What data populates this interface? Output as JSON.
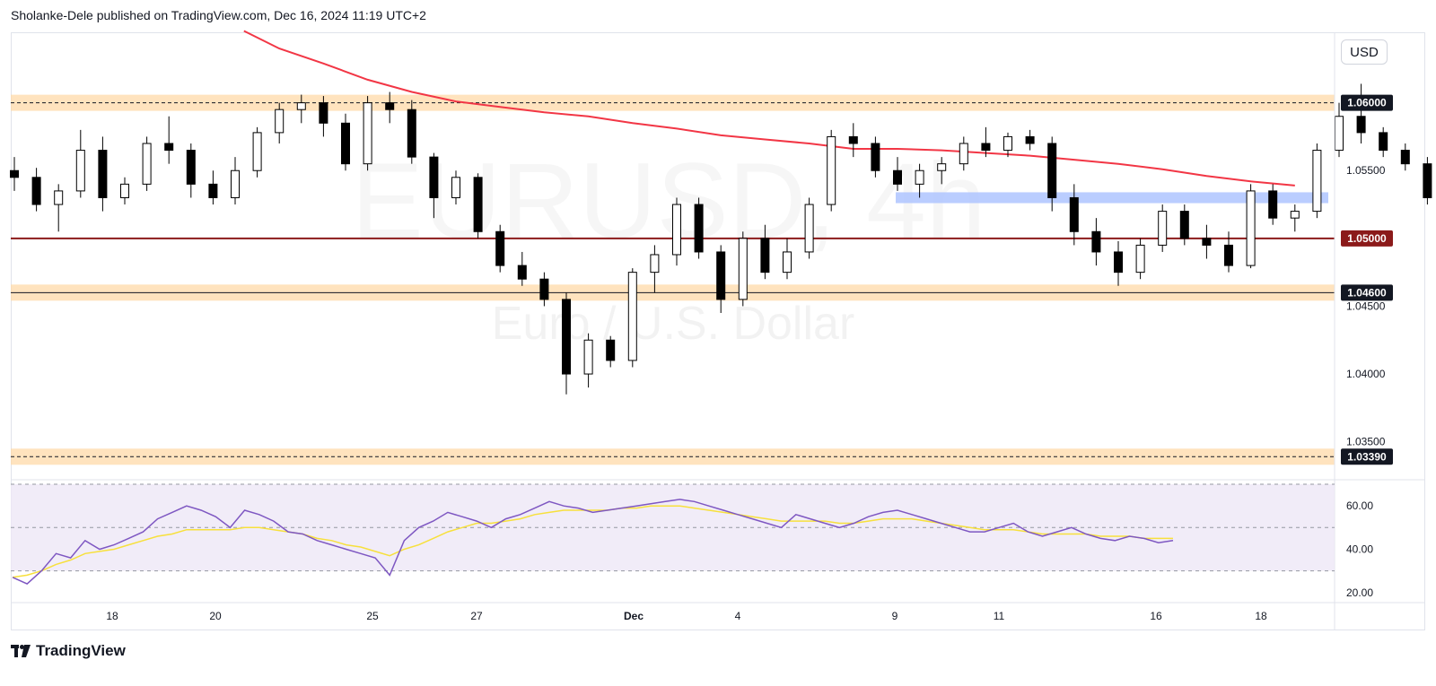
{
  "header": {
    "text": "Sholanke-Dele published on TradingView.com, Dec 16, 2024 11:19 UTC+2"
  },
  "watermark": {
    "symbol": "EURUSD, 4h",
    "description": "Euro / U.S. Dollar"
  },
  "currency_button": "USD",
  "footer": {
    "brand": "TradingView",
    "logo_icon": "tradingview-logo-icon"
  },
  "colors": {
    "up_body": "#ffffff",
    "down_body": "#000000",
    "wick": "#000000",
    "ma": "#f23645",
    "zone": "#ffd9a8",
    "blue_zone": "#b3c8ff",
    "level_line": "#8b1a1a",
    "rsi": "#7e57c2",
    "rsi_ma": "#f7e03c",
    "rsi_band": "#ede7f6"
  },
  "chart_data": [
    {
      "type": "candlestick",
      "symbol": "EURUSD",
      "timeframe": "4h",
      "y_axis": {
        "ticks": [
          "1.05500",
          "1.04500",
          "1.04000",
          "1.03500"
        ],
        "ylim": [
          1.0322,
          1.0652
        ]
      },
      "x_axis": {
        "ticks": [
          "18",
          "20",
          "25",
          "27",
          "Dec",
          "4",
          "9",
          "11",
          "16",
          "18"
        ]
      },
      "price_levels": [
        {
          "label": "1.06000",
          "value": 1.06,
          "style": "zone"
        },
        {
          "label": "1.05000",
          "value": 1.05,
          "style": "solid-dark-red"
        },
        {
          "label": "1.04600",
          "value": 1.046,
          "style": "zone"
        },
        {
          "label": "1.03390",
          "value": 1.0339,
          "style": "zone"
        }
      ],
      "blue_zone": {
        "from": 1.0526,
        "to": 1.0534
      },
      "moving_average": [
        [
          10.4,
          1.0653
        ],
        [
          12,
          1.064
        ],
        [
          14,
          1.0629
        ],
        [
          16,
          1.0617
        ],
        [
          18,
          1.0608
        ],
        [
          20,
          1.0601
        ],
        [
          22,
          1.0597
        ],
        [
          24,
          1.0593
        ],
        [
          26,
          1.059
        ],
        [
          28,
          1.0585
        ],
        [
          30,
          1.0581
        ],
        [
          32,
          1.0576
        ],
        [
          34,
          1.0573
        ],
        [
          36,
          1.057
        ],
        [
          38,
          1.0566
        ],
        [
          40,
          1.0566
        ],
        [
          42,
          1.0565
        ],
        [
          44,
          1.0563
        ],
        [
          46,
          1.0561
        ],
        [
          48,
          1.0558
        ],
        [
          50,
          1.0555
        ],
        [
          52,
          1.0551
        ],
        [
          54,
          1.0546
        ],
        [
          56,
          1.0542
        ],
        [
          58,
          1.0539
        ]
      ],
      "candles": [
        [
          1.055,
          1.056,
          1.0535,
          1.0545
        ],
        [
          1.0545,
          1.0552,
          1.052,
          1.0525
        ],
        [
          1.0525,
          1.054,
          1.0505,
          1.0535
        ],
        [
          1.0535,
          1.058,
          1.053,
          1.0565
        ],
        [
          1.0565,
          1.0575,
          1.052,
          1.053
        ],
        [
          1.053,
          1.0545,
          1.0525,
          1.054
        ],
        [
          1.054,
          1.0575,
          1.0535,
          1.057
        ],
        [
          1.057,
          1.059,
          1.0555,
          1.0565
        ],
        [
          1.0565,
          1.057,
          1.053,
          1.054
        ],
        [
          1.054,
          1.055,
          1.0525,
          1.053
        ],
        [
          1.053,
          1.056,
          1.0525,
          1.055
        ],
        [
          1.055,
          1.0582,
          1.0545,
          1.0578
        ],
        [
          1.0578,
          1.06,
          1.057,
          1.0595
        ],
        [
          1.0595,
          1.0606,
          1.0585,
          1.06
        ],
        [
          1.06,
          1.0605,
          1.0575,
          1.0585
        ],
        [
          1.0585,
          1.0592,
          1.055,
          1.0555
        ],
        [
          1.0555,
          1.0605,
          1.055,
          1.06
        ],
        [
          1.06,
          1.0608,
          1.0585,
          1.0595
        ],
        [
          1.0595,
          1.0602,
          1.0555,
          1.056
        ],
        [
          1.056,
          1.0563,
          1.0515,
          1.053
        ],
        [
          1.053,
          1.055,
          1.0525,
          1.0545
        ],
        [
          1.0545,
          1.0548,
          1.05,
          1.0505
        ],
        [
          1.0505,
          1.051,
          1.0475,
          1.048
        ],
        [
          1.048,
          1.049,
          1.0465,
          1.047
        ],
        [
          1.047,
          1.0475,
          1.045,
          1.0455
        ],
        [
          1.0455,
          1.046,
          1.0385,
          1.04
        ],
        [
          1.04,
          1.043,
          1.039,
          1.0425
        ],
        [
          1.0425,
          1.0428,
          1.0405,
          1.041
        ],
        [
          1.041,
          1.0478,
          1.0405,
          1.0475
        ],
        [
          1.0475,
          1.0495,
          1.046,
          1.0488
        ],
        [
          1.0488,
          1.053,
          1.048,
          1.0525
        ],
        [
          1.0525,
          1.053,
          1.0485,
          1.049
        ],
        [
          1.049,
          1.0495,
          1.0445,
          1.0455
        ],
        [
          1.0455,
          1.0505,
          1.045,
          1.05
        ],
        [
          1.05,
          1.051,
          1.047,
          1.0475
        ],
        [
          1.0475,
          1.05,
          1.047,
          1.049
        ],
        [
          1.049,
          1.053,
          1.0485,
          1.0525
        ],
        [
          1.0525,
          1.058,
          1.052,
          1.0575
        ],
        [
          1.0575,
          1.0585,
          1.056,
          1.057
        ],
        [
          1.057,
          1.0575,
          1.0545,
          1.055
        ],
        [
          1.055,
          1.056,
          1.0535,
          1.054
        ],
        [
          1.054,
          1.0555,
          1.053,
          1.055
        ],
        [
          1.055,
          1.056,
          1.054,
          1.0555
        ],
        [
          1.0555,
          1.0575,
          1.055,
          1.057
        ],
        [
          1.057,
          1.0582,
          1.056,
          1.0565
        ],
        [
          1.0565,
          1.0578,
          1.056,
          1.0575
        ],
        [
          1.0575,
          1.058,
          1.0565,
          1.057
        ],
        [
          1.057,
          1.0575,
          1.052,
          1.053
        ],
        [
          1.053,
          1.054,
          1.0495,
          1.0505
        ],
        [
          1.0505,
          1.0515,
          1.048,
          1.049
        ],
        [
          1.049,
          1.0498,
          1.0465,
          1.0475
        ],
        [
          1.0475,
          1.05,
          1.047,
          1.0495
        ],
        [
          1.0495,
          1.0525,
          1.049,
          1.052
        ],
        [
          1.052,
          1.0525,
          1.0495,
          1.05
        ],
        [
          1.05,
          1.051,
          1.0485,
          1.0495
        ],
        [
          1.0495,
          1.0505,
          1.0475,
          1.048
        ],
        [
          1.048,
          1.054,
          1.0478,
          1.0535
        ],
        [
          1.0535,
          1.054,
          1.051,
          1.0515
        ],
        [
          1.0515,
          1.0525,
          1.0505,
          1.052
        ],
        [
          1.052,
          1.057,
          1.0515,
          1.0565
        ],
        [
          1.0565,
          1.06,
          1.056,
          1.059
        ],
        [
          1.059,
          1.0614,
          1.057,
          1.0578
        ],
        [
          1.0578,
          1.0582,
          1.056,
          1.0565
        ],
        [
          1.0565,
          1.057,
          1.055,
          1.0555
        ],
        [
          1.0555,
          1.056,
          1.0525,
          1.053
        ],
        [
          1.053,
          1.0538,
          1.051,
          1.0515
        ],
        [
          1.0515,
          1.0525,
          1.0495,
          1.05
        ],
        [
          1.05,
          1.053,
          1.0495,
          1.0525
        ],
        [
          1.0525,
          1.0532,
          1.0495,
          1.0505
        ],
        [
          1.0505,
          1.051,
          1.048,
          1.0485
        ],
        [
          1.0485,
          1.0492,
          1.047,
          1.0475
        ],
        [
          1.0475,
          1.0505,
          1.047,
          1.05
        ],
        [
          1.05,
          1.051,
          1.048,
          1.0485
        ],
        [
          1.0485,
          1.049,
          1.046,
          1.0465
        ],
        [
          1.0465,
          1.047,
          1.0452,
          1.0462
        ],
        [
          1.0462,
          1.0505,
          1.0455,
          1.05
        ],
        [
          1.05,
          1.0525,
          1.0495,
          1.052
        ],
        [
          1.052,
          1.0528,
          1.0508,
          1.0512
        ]
      ]
    },
    {
      "type": "line",
      "name": "RSI",
      "y_axis": {
        "ticks": [
          "60.00",
          "40.00",
          "20.00"
        ],
        "ylim": [
          17,
          70
        ]
      },
      "bands": [
        30,
        50,
        70
      ],
      "series": [
        {
          "values": [
            27,
            24,
            30,
            38,
            36,
            44,
            40,
            42,
            45,
            48,
            54,
            57,
            60,
            58,
            55,
            50,
            58,
            56,
            53,
            48,
            47,
            44,
            42,
            40,
            38,
            36,
            28,
            44,
            50,
            53,
            57,
            55,
            53,
            50,
            54,
            56,
            59,
            62,
            60,
            59,
            57,
            58,
            59,
            60,
            61,
            62,
            63,
            62,
            60,
            58,
            56,
            54,
            52,
            50,
            56,
            54,
            52,
            50,
            52,
            55,
            57,
            58,
            56,
            54,
            52,
            50,
            48,
            48,
            50,
            52,
            48,
            46,
            48,
            50,
            47,
            45,
            44,
            46,
            45,
            43,
            44
          ]
        },
        {
          "name": "",
          "values": [
            27,
            28,
            30,
            33,
            35,
            38,
            39,
            40,
            42,
            44,
            46,
            47,
            49,
            49,
            49,
            49,
            50,
            50,
            49,
            48,
            47,
            45,
            44,
            42,
            41,
            39,
            37,
            40,
            42,
            45,
            48,
            50,
            52,
            52,
            53,
            54,
            56,
            57,
            58,
            58,
            58,
            58,
            59,
            59,
            60,
            60,
            60,
            59,
            58,
            57,
            56,
            55,
            54,
            53,
            53,
            53,
            53,
            52,
            52,
            53,
            54,
            54,
            54,
            53,
            52,
            51,
            50,
            49,
            49,
            49,
            48,
            47,
            47,
            47,
            47,
            46,
            46,
            46,
            45,
            45,
            45
          ]
        }
      ]
    }
  ]
}
